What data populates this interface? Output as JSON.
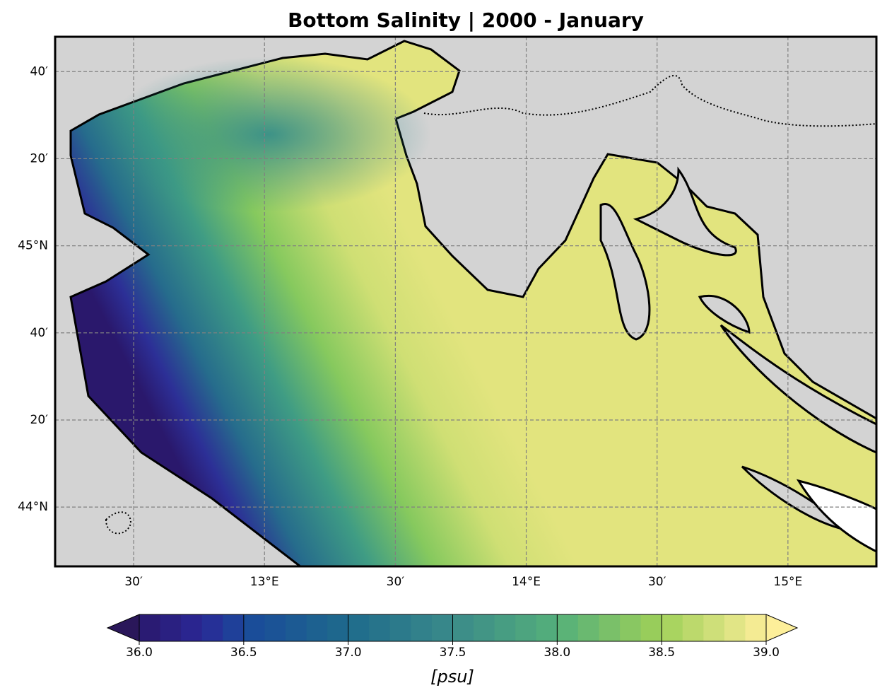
{
  "title": "Bottom Salinity | 2000 - January",
  "map": {
    "xlim": [
      12.2,
      15.338
    ],
    "ylim": [
      43.773,
      45.8
    ],
    "lon_ticks": [
      {
        "value": 12.5,
        "label": "30′"
      },
      {
        "value": 13,
        "label": "13°E"
      },
      {
        "value": 13.5,
        "label": "30′"
      },
      {
        "value": 14,
        "label": "14°E"
      },
      {
        "value": 14.5,
        "label": "30′"
      },
      {
        "value": 15,
        "label": "15°E"
      }
    ],
    "lat_ticks": [
      {
        "value": 45.6667,
        "label": "40′"
      },
      {
        "value": 45.3333,
        "label": "20′"
      },
      {
        "value": 45,
        "label": "45°N"
      },
      {
        "value": 44.6667,
        "label": "40′"
      },
      {
        "value": 44.3333,
        "label": "20′"
      },
      {
        "value": 44,
        "label": "44°N"
      }
    ],
    "grid": true
  },
  "colorbar": {
    "label": "[psu]",
    "range": [
      36,
      39
    ],
    "ticks": [
      {
        "value": 36,
        "label": "36.0"
      },
      {
        "value": 36.5,
        "label": "36.5"
      },
      {
        "value": 37,
        "label": "37.0"
      },
      {
        "value": 37.5,
        "label": "37.5"
      },
      {
        "value": 38,
        "label": "38.0"
      },
      {
        "value": 38.5,
        "label": "38.5"
      },
      {
        "value": 39,
        "label": "39.0"
      }
    ]
  }
}
